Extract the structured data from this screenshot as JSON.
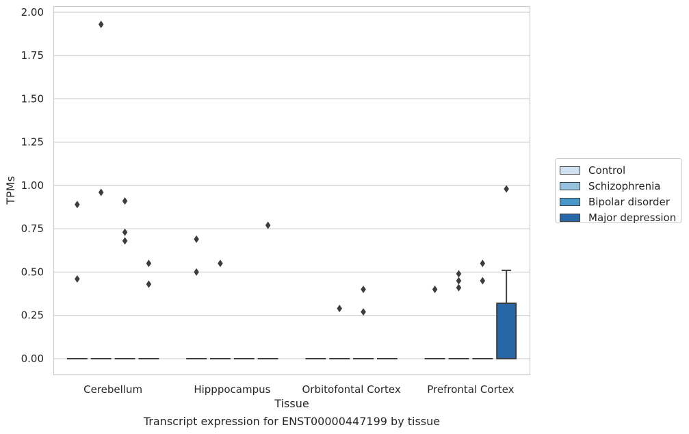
{
  "chart_data": {
    "type": "box",
    "caption": "Transcript expression for ENST00000447199 by tissue",
    "xlabel": "Tissue",
    "ylabel": "TPMs",
    "ylim": [
      -0.095,
      2.035
    ],
    "y_ticks": [
      "0.00",
      "0.25",
      "0.50",
      "0.75",
      "1.00",
      "1.25",
      "1.50",
      "1.75",
      "2.00"
    ],
    "categories": [
      "Cerebellum",
      "Hipppocampus",
      "Orbitofontal Cortex",
      "Prefrontal Cortex"
    ],
    "grid": "horizontal",
    "legend_position": "right",
    "series": [
      {
        "name": "Control",
        "color": "#d0e1f2",
        "boxes": [
          {
            "category": "Cerebellum",
            "q1": 0,
            "median": 0,
            "q3": 0,
            "whisker_low": 0,
            "whisker_high": 0,
            "outliers": [
              0.46,
              0.89
            ]
          },
          {
            "category": "Hipppocampus",
            "q1": 0,
            "median": 0,
            "q3": 0,
            "whisker_low": 0,
            "whisker_high": 0,
            "outliers": [
              0.5,
              0.69
            ]
          },
          {
            "category": "Orbitofontal Cortex",
            "q1": 0,
            "median": 0,
            "q3": 0,
            "whisker_low": 0,
            "whisker_high": 0,
            "outliers": []
          },
          {
            "category": "Prefrontal Cortex",
            "q1": 0,
            "median": 0,
            "q3": 0,
            "whisker_low": 0,
            "whisker_high": 0,
            "outliers": [
              0.4
            ]
          }
        ]
      },
      {
        "name": "Schizophrenia",
        "color": "#94c4df",
        "boxes": [
          {
            "category": "Cerebellum",
            "q1": 0,
            "median": 0,
            "q3": 0,
            "whisker_low": 0,
            "whisker_high": 0,
            "outliers": [
              0.96,
              1.93
            ]
          },
          {
            "category": "Hipppocampus",
            "q1": 0,
            "median": 0,
            "q3": 0,
            "whisker_low": 0,
            "whisker_high": 0,
            "outliers": [
              0.55
            ]
          },
          {
            "category": "Orbitofontal Cortex",
            "q1": 0,
            "median": 0,
            "q3": 0,
            "whisker_low": 0,
            "whisker_high": 0,
            "outliers": [
              0.29
            ]
          },
          {
            "category": "Prefrontal Cortex",
            "q1": 0,
            "median": 0,
            "q3": 0,
            "whisker_low": 0,
            "whisker_high": 0,
            "outliers": [
              0.41,
              0.45,
              0.49
            ]
          }
        ]
      },
      {
        "name": "Bipolar disorder",
        "color": "#4a98c9",
        "boxes": [
          {
            "category": "Cerebellum",
            "q1": 0,
            "median": 0,
            "q3": 0,
            "whisker_low": 0,
            "whisker_high": 0,
            "outliers": [
              0.68,
              0.73,
              0.91
            ]
          },
          {
            "category": "Hipppocampus",
            "q1": 0,
            "median": 0,
            "q3": 0,
            "whisker_low": 0,
            "whisker_high": 0,
            "outliers": []
          },
          {
            "category": "Orbitofontal Cortex",
            "q1": 0,
            "median": 0,
            "q3": 0,
            "whisker_low": 0,
            "whisker_high": 0,
            "outliers": [
              0.27,
              0.4
            ]
          },
          {
            "category": "Prefrontal Cortex",
            "q1": 0,
            "median": 0,
            "q3": 0,
            "whisker_low": 0,
            "whisker_high": 0,
            "outliers": [
              0.45,
              0.55
            ]
          }
        ]
      },
      {
        "name": "Major depression",
        "color": "#2767a8",
        "boxes": [
          {
            "category": "Cerebellum",
            "q1": 0,
            "median": 0,
            "q3": 0,
            "whisker_low": 0,
            "whisker_high": 0,
            "outliers": [
              0.43,
              0.55
            ]
          },
          {
            "category": "Hipppocampus",
            "q1": 0,
            "median": 0,
            "q3": 0,
            "whisker_low": 0,
            "whisker_high": 0,
            "outliers": [
              0.77
            ]
          },
          {
            "category": "Orbitofontal Cortex",
            "q1": 0,
            "median": 0,
            "q3": 0,
            "whisker_low": 0,
            "whisker_high": 0,
            "outliers": []
          },
          {
            "category": "Prefrontal Cortex",
            "q1": 0,
            "median": 0,
            "q3": 0.32,
            "whisker_low": 0,
            "whisker_high": 0.51,
            "outliers": [
              0.98
            ]
          }
        ]
      }
    ]
  }
}
